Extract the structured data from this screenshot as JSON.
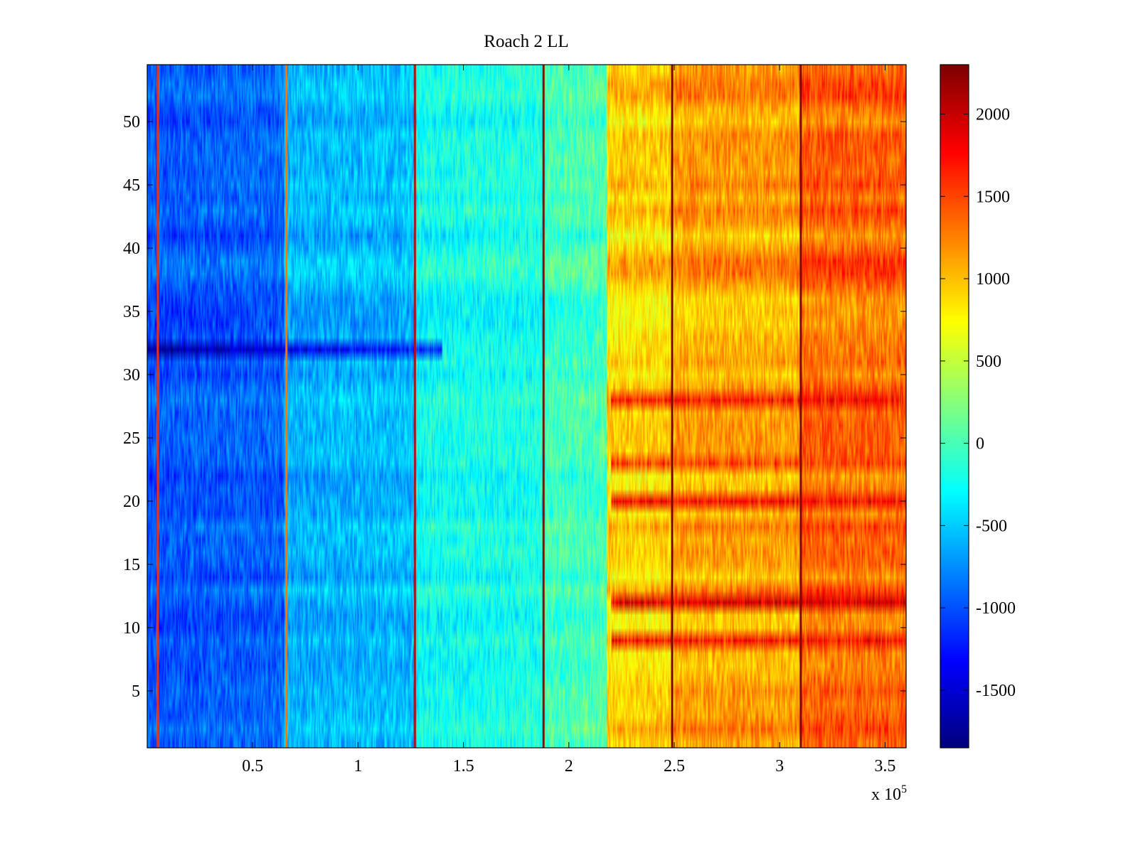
{
  "chart_data": {
    "type": "heatmap",
    "title": "Roach 2 LL",
    "xlabel": "",
    "ylabel": "",
    "x_exponent_label": "x 10",
    "x_exponent_power": "5",
    "xlim": [
      0,
      3.6
    ],
    "ylim": [
      0.5,
      54.5
    ],
    "x_ticks": [
      0.5,
      1,
      1.5,
      2,
      2.5,
      3,
      3.5
    ],
    "x_tick_labels": [
      "0.5",
      "1",
      "1.5",
      "2",
      "2.5",
      "3",
      "3.5"
    ],
    "y_ticks": [
      5,
      10,
      15,
      20,
      25,
      30,
      35,
      40,
      45,
      50
    ],
    "y_tick_labels": [
      "5",
      "10",
      "15",
      "20",
      "25",
      "30",
      "35",
      "40",
      "45",
      "50"
    ],
    "rows": 54,
    "colormap": "jet",
    "clim": [
      -1850,
      2300
    ],
    "colorbar_ticks": [
      -1500,
      -1000,
      -500,
      0,
      500,
      1000,
      1500,
      2000
    ],
    "colorbar_tick_labels": [
      "-1500",
      "-1000",
      "-500",
      "0",
      "500",
      "1000",
      "1500",
      "2000"
    ],
    "column_segments": [
      {
        "x_start": 0.0,
        "x_end": 0.65,
        "base_value": -1000
      },
      {
        "x_start": 0.65,
        "x_end": 1.27,
        "base_value": -700
      },
      {
        "x_start": 1.27,
        "x_end": 1.88,
        "base_value": -400
      },
      {
        "x_start": 1.88,
        "x_end": 2.18,
        "base_value": -250
      },
      {
        "x_start": 2.18,
        "x_end": 2.5,
        "base_value": 900
      },
      {
        "x_start": 2.5,
        "x_end": 3.1,
        "base_value": 1100
      },
      {
        "x_start": 3.1,
        "x_end": 3.6,
        "base_value": 1350
      }
    ],
    "vertical_stripes": [
      {
        "x": 0.05,
        "value": 1600
      },
      {
        "x": 0.66,
        "value": 1300
      },
      {
        "x": 1.27,
        "value": 2000
      },
      {
        "x": 1.88,
        "value": 2250
      },
      {
        "x": 2.49,
        "value": 2300
      },
      {
        "x": 3.1,
        "value": 2300
      }
    ],
    "highlighted_rows": [
      {
        "row": 32,
        "description_value": -1750
      },
      {
        "row": 28,
        "description_value": 1900
      },
      {
        "row": 23,
        "description_value": 1700
      },
      {
        "row": 20,
        "description_value": 1950
      },
      {
        "row": 12,
        "description_value": 2100
      },
      {
        "row": 9,
        "description_value": 1900
      }
    ]
  }
}
